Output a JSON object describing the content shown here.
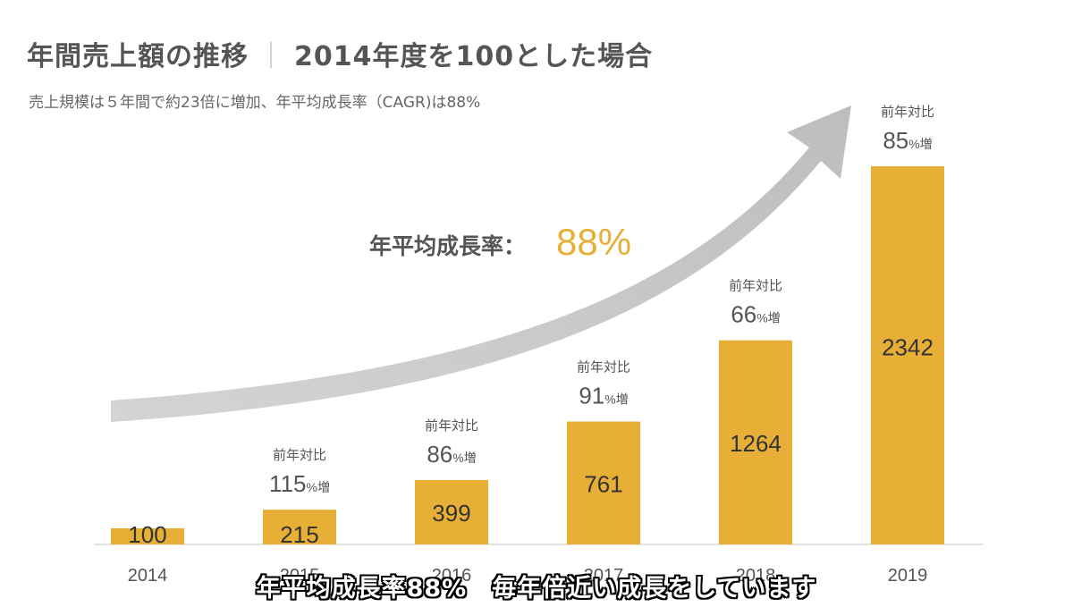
{
  "header": {
    "title_main": "年間売上額の推移",
    "title_separator": "｜",
    "title_sub": "2014年度を100とした場合",
    "subtitle": "売上規模は５年間で約23倍に増加、年平均成長率（CAGR)は88%"
  },
  "annotation": {
    "cagr_label": "年平均成長率：",
    "cagr_value": "88%"
  },
  "caption": "年平均成長率88%　毎年倍近い成長をしています",
  "colors": {
    "bar": "#E8AF37",
    "accent_text": "#E8AF37",
    "arrow": "#C8C8C8",
    "text": "#555555"
  },
  "chart_data": {
    "type": "bar",
    "categories": [
      "2014",
      "2015",
      "2016",
      "2017",
      "2018",
      "2019"
    ],
    "values": [
      100,
      215,
      399,
      761,
      1264,
      2342
    ],
    "yoy_label": "前年対比",
    "yoy_growth": [
      null,
      {
        "value": "115",
        "unit": "%増"
      },
      {
        "value": "86",
        "unit": "%増"
      },
      {
        "value": "91",
        "unit": "%増"
      },
      {
        "value": "66",
        "unit": "%増"
      },
      {
        "value": "85",
        "unit": "%増"
      }
    ],
    "ylim": [
      0,
      2342
    ],
    "grid": false,
    "legend": "none"
  }
}
